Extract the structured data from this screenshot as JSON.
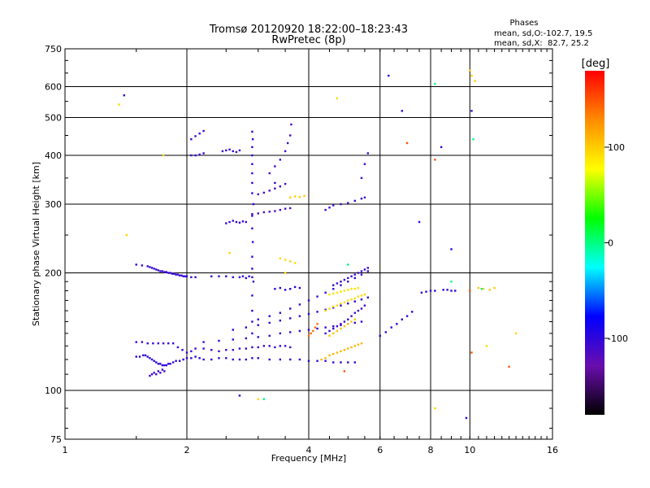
{
  "chart_data": {
    "type": "scatter",
    "title": "Tromsø 20120920 18:22:00–18:23:43",
    "subtitle": "RwPretec (8p)",
    "xlabel": "Frequency [MHz]",
    "ylabel": "Stationary phase Virtual Height [km]",
    "x_scale": "log",
    "y_scale": "log",
    "xlim": [
      1,
      16
    ],
    "ylim": [
      75,
      750
    ],
    "x_ticks": [
      1,
      2,
      4,
      6,
      8,
      10,
      16
    ],
    "x_tick_labels": [
      "1",
      "2",
      "4",
      "6",
      "8",
      "10",
      "16"
    ],
    "y_ticks": [
      75,
      100,
      200,
      300,
      400,
      500,
      600,
      750
    ],
    "y_tick_labels": [
      "75",
      "100",
      "200",
      "300",
      "400",
      "500",
      "600",
      "750"
    ],
    "grid": true,
    "phase_info": {
      "heading": "Phases",
      "line1": "mean, sd,O:-102.7, 19.5",
      "line2": "mean, sd,X:  82.7, 25.2"
    },
    "colorbar": {
      "unit": "[deg]",
      "range": [
        -180,
        180
      ],
      "ticks": [
        100,
        0,
        -100
      ],
      "tick_labels": [
        "100",
        "0",
        "-100"
      ],
      "stops": [
        "#ff0000",
        "#ff8c00",
        "#ffff00",
        "#00ff00",
        "#00ffff",
        "#0000ff",
        "#6a0dad",
        "#000000"
      ]
    },
    "series": [
      {
        "phase": -104,
        "x": [
          1.5,
          1.55,
          1.6,
          1.62,
          1.64,
          1.66,
          1.68,
          1.7,
          1.72,
          1.74,
          1.76,
          1.78,
          1.8,
          1.82,
          1.84,
          1.86,
          1.88,
          1.9,
          1.92,
          1.94,
          1.96,
          1.98,
          2.0,
          2.05,
          2.1
        ],
        "y": [
          210,
          209,
          208,
          207,
          206,
          205,
          204,
          203,
          202,
          202,
          201,
          201,
          200,
          200,
          199,
          199,
          198,
          198,
          197,
          197,
          196,
          196,
          196,
          195,
          195
        ]
      },
      {
        "phase": -100,
        "x": [
          1.5,
          1.53,
          1.56,
          1.58,
          1.6,
          1.62,
          1.64,
          1.66,
          1.68,
          1.7,
          1.72,
          1.74,
          1.76,
          1.78,
          1.8,
          1.82,
          1.85,
          1.88,
          1.92,
          1.96,
          2.0,
          2.05,
          2.1,
          2.15,
          2.2,
          2.3,
          2.4,
          2.5,
          2.6,
          2.7,
          2.8,
          2.9,
          3.0,
          3.2,
          3.4,
          3.6,
          3.8,
          4.0,
          4.2,
          4.4,
          4.6,
          4.8,
          5.0,
          5.2
        ],
        "y": [
          122,
          122,
          123,
          123,
          122,
          121,
          120,
          119,
          118,
          117,
          117,
          116,
          116,
          116,
          117,
          117,
          118,
          119,
          119,
          120,
          121,
          121,
          122,
          121,
          120,
          120,
          121,
          121,
          120,
          120,
          120,
          121,
          121,
          120,
          120,
          120,
          120,
          119,
          119,
          119,
          118,
          118,
          118,
          118
        ]
      },
      {
        "phase": -105,
        "x": [
          1.5,
          1.55,
          1.6,
          1.65,
          1.7,
          1.75,
          1.8,
          1.85,
          1.9,
          1.95,
          2.0,
          2.05,
          2.1,
          2.2,
          2.3,
          2.4,
          2.5,
          2.6,
          2.7,
          2.8,
          2.9,
          3.0,
          3.1,
          3.2,
          3.3,
          3.4,
          3.5,
          3.6
        ],
        "y": [
          133,
          133,
          132,
          132,
          132,
          132,
          132,
          132,
          129,
          127,
          125,
          126,
          128,
          128,
          127,
          126,
          127,
          127,
          128,
          128,
          129,
          129,
          130,
          130,
          129,
          130,
          130,
          129
        ]
      },
      {
        "phase": -108,
        "x": [
          1.62,
          1.64,
          1.66,
          1.68,
          1.7,
          1.72,
          1.74,
          1.76
        ],
        "y": [
          109,
          110,
          111,
          110,
          112,
          111,
          113,
          112
        ]
      },
      {
        "phase": -102,
        "x": [
          2.2,
          2.4,
          2.6,
          2.8,
          3.0,
          3.2,
          3.4,
          3.6,
          3.8,
          4.0,
          4.2,
          4.4,
          4.6,
          4.8,
          5.0,
          5.2,
          5.4
        ],
        "y": [
          133,
          134,
          135,
          136,
          137,
          138,
          140,
          141,
          142,
          143,
          144,
          145,
          146,
          147,
          148,
          149,
          150
        ]
      },
      {
        "phase": -100,
        "x": [
          2.6,
          2.8,
          3.0,
          3.2,
          3.4,
          3.6,
          3.8,
          4.0,
          4.2,
          4.4,
          4.6,
          4.8,
          5.0,
          5.2,
          5.4,
          5.6
        ],
        "y": [
          143,
          145,
          147,
          149,
          151,
          153,
          155,
          157,
          159,
          161,
          163,
          165,
          167,
          169,
          171,
          173
        ]
      },
      {
        "phase": -103,
        "x": [
          3.0,
          3.2,
          3.4,
          3.6,
          3.8,
          4.0,
          4.2,
          4.4,
          4.6,
          4.8,
          5.0,
          5.2,
          5.4,
          5.6
        ],
        "y": [
          152,
          155,
          158,
          162,
          166,
          170,
          174,
          178,
          182,
          186,
          190,
          194,
          198,
          202
        ]
      },
      {
        "phase": -100,
        "x": [
          2.3,
          2.4,
          2.5,
          2.6,
          2.7,
          2.75,
          2.8,
          2.85,
          2.9
        ],
        "y": [
          196,
          196,
          196,
          195,
          195,
          196,
          194,
          196,
          195
        ]
      },
      {
        "phase": -98,
        "x": [
          2.9,
          2.9,
          2.9,
          2.9,
          2.92,
          2.9,
          2.9,
          2.91,
          2.9,
          2.9,
          2.92,
          2.9,
          2.9,
          2.9,
          2.9,
          2.9,
          2.9,
          2.91,
          2.9
        ],
        "y": [
          140,
          150,
          160,
          175,
          190,
          205,
          220,
          240,
          260,
          280,
          300,
          320,
          340,
          360,
          380,
          400,
          420,
          440,
          460
        ]
      },
      {
        "phase": -110,
        "x": [
          3.2,
          3.3,
          3.4,
          3.5,
          3.55,
          3.6,
          3.62
        ],
        "y": [
          360,
          375,
          390,
          410,
          430,
          450,
          480
        ]
      },
      {
        "phase": -112,
        "x": [
          2.9,
          3.0,
          3.1,
          3.2,
          3.3,
          3.4,
          3.5,
          3.6
        ],
        "y": [
          283,
          284,
          286,
          287,
          288,
          290,
          292,
          293
        ]
      },
      {
        "phase": -110,
        "x": [
          3.0,
          3.1,
          3.2,
          3.3,
          3.4,
          3.5
        ],
        "y": [
          318,
          321,
          325,
          329,
          333,
          338
        ]
      },
      {
        "phase": -106,
        "x": [
          2.05,
          2.1,
          2.15,
          2.2,
          2.45,
          2.5,
          2.55,
          2.6,
          2.65,
          2.7
        ],
        "y": [
          400,
          400,
          402,
          405,
          410,
          412,
          414,
          410,
          408,
          412
        ]
      },
      {
        "phase": -105,
        "x": [
          2.05,
          2.1,
          2.15,
          2.2
        ],
        "y": [
          440,
          448,
          455,
          462
        ]
      },
      {
        "phase": -104,
        "x": [
          2.5,
          2.55,
          2.6,
          2.65,
          2.7,
          2.75,
          2.8
        ],
        "y": [
          268,
          270,
          272,
          270,
          269,
          271,
          270
        ]
      },
      {
        "phase": -95,
        "x": [
          3.3,
          3.4,
          3.5,
          3.6,
          3.7,
          3.8
        ],
        "y": [
          182,
          183,
          181,
          182,
          184,
          183
        ]
      },
      {
        "phase": 110,
        "x": [
          4.3,
          4.4,
          4.5,
          4.6,
          4.7,
          4.8,
          4.9,
          5.0,
          5.1,
          5.2,
          5.3,
          5.4
        ],
        "y": [
          120,
          121,
          123,
          124,
          125,
          126,
          127,
          128,
          129,
          130,
          131,
          132
        ]
      },
      {
        "phase": 95,
        "x": [
          4.4,
          4.5,
          4.6,
          4.7,
          4.8,
          4.9,
          5.0,
          5.1,
          5.2,
          5.3,
          5.4,
          5.5
        ],
        "y": [
          160,
          162,
          164,
          165,
          167,
          168,
          170,
          171,
          172,
          174,
          175,
          176
        ]
      },
      {
        "phase": 90,
        "x": [
          4.5,
          4.6,
          4.7,
          4.8,
          4.9,
          5.0,
          5.1,
          5.2,
          5.3
        ],
        "y": [
          176,
          177,
          178,
          179,
          180,
          181,
          182,
          182,
          183
        ]
      },
      {
        "phase": 105,
        "x": [
          4.5,
          4.6,
          4.7,
          4.8,
          4.9,
          5.0,
          5.1,
          5.2
        ],
        "y": [
          138,
          140,
          142,
          144,
          146,
          148,
          150,
          152
        ]
      },
      {
        "phase": 140,
        "x": [
          4.0,
          4.05,
          4.1,
          4.15,
          4.2
        ],
        "y": [
          138,
          140,
          142,
          145,
          148
        ]
      },
      {
        "phase": -104,
        "x": [
          4.6,
          4.7,
          4.8,
          4.9,
          5.0,
          5.1,
          5.2,
          5.3,
          5.4,
          5.5,
          5.6
        ],
        "y": [
          186,
          188,
          190,
          192,
          194,
          196,
          198,
          200,
          202,
          204,
          206
        ]
      },
      {
        "phase": -105,
        "x": [
          4.4,
          4.5,
          4.6,
          4.7,
          4.8,
          4.9,
          5.0,
          5.1,
          5.2,
          5.3,
          5.4,
          5.5
        ],
        "y": [
          140,
          142,
          144,
          146,
          148,
          150,
          152,
          155,
          158,
          160,
          162,
          165
        ]
      },
      {
        "phase": -101,
        "x": [
          6.0,
          6.2,
          6.4,
          6.6,
          6.8,
          7.0,
          7.2
        ],
        "y": [
          138,
          141,
          145,
          148,
          152,
          155,
          159
        ]
      },
      {
        "phase": -100,
        "x": [
          7.6,
          7.8,
          8.0,
          8.2,
          8.6,
          8.8,
          9.0,
          9.2
        ],
        "y": [
          178,
          179,
          180,
          180,
          181,
          181,
          180,
          180
        ]
      },
      {
        "phase": 100,
        "x": [
          3.6,
          3.7,
          3.8,
          3.9
        ],
        "y": [
          312,
          314,
          313,
          315
        ]
      },
      {
        "phase": 95,
        "x": [
          3.4,
          3.5,
          3.6,
          3.7
        ],
        "y": [
          218,
          216,
          214,
          212
        ]
      },
      {
        "phase": -106,
        "x": [
          4.4,
          4.5,
          4.6,
          4.8,
          5.0,
          5.2,
          5.4,
          5.5
        ],
        "y": [
          290,
          294,
          298,
          300,
          302,
          306,
          310,
          312
        ]
      },
      {
        "phase": -108,
        "x": [
          5.4,
          5.5,
          5.6
        ],
        "y": [
          350,
          380,
          405
        ]
      },
      {
        "phase": 150,
        "x": [
          7.0,
          8.2,
          10.0,
          10.1,
          4.9,
          12.5
        ],
        "y": [
          430,
          390,
          180,
          125,
          112,
          115
        ]
      },
      {
        "phase": 100,
        "x": [
          10.0,
          10.1,
          10.3,
          10.5,
          10.8,
          11.2,
          11.5
        ],
        "y": [
          660,
          640,
          620,
          183,
          182,
          181,
          183
        ]
      },
      {
        "phase": -100,
        "x": [
          1.4,
          2.7,
          3.3,
          6.3,
          6.8,
          7.5,
          8.5,
          9.0,
          9.8,
          10.1
        ],
        "y": [
          570,
          97,
          340,
          640,
          520,
          270,
          420,
          230,
          85,
          520
        ]
      },
      {
        "phase": 95,
        "x": [
          1.36,
          1.42,
          1.75,
          2.55,
          3.0,
          3.5,
          4.7,
          8.2,
          11.0,
          13.0
        ],
        "y": [
          540,
          250,
          400,
          225,
          95,
          200,
          560,
          90,
          130,
          140
        ]
      },
      {
        "phase": 0,
        "x": [
          3.1,
          5.0,
          8.2,
          9.0,
          10.2,
          10.7
        ],
        "y": [
          95,
          210,
          610,
          190,
          440,
          182
        ]
      }
    ]
  }
}
